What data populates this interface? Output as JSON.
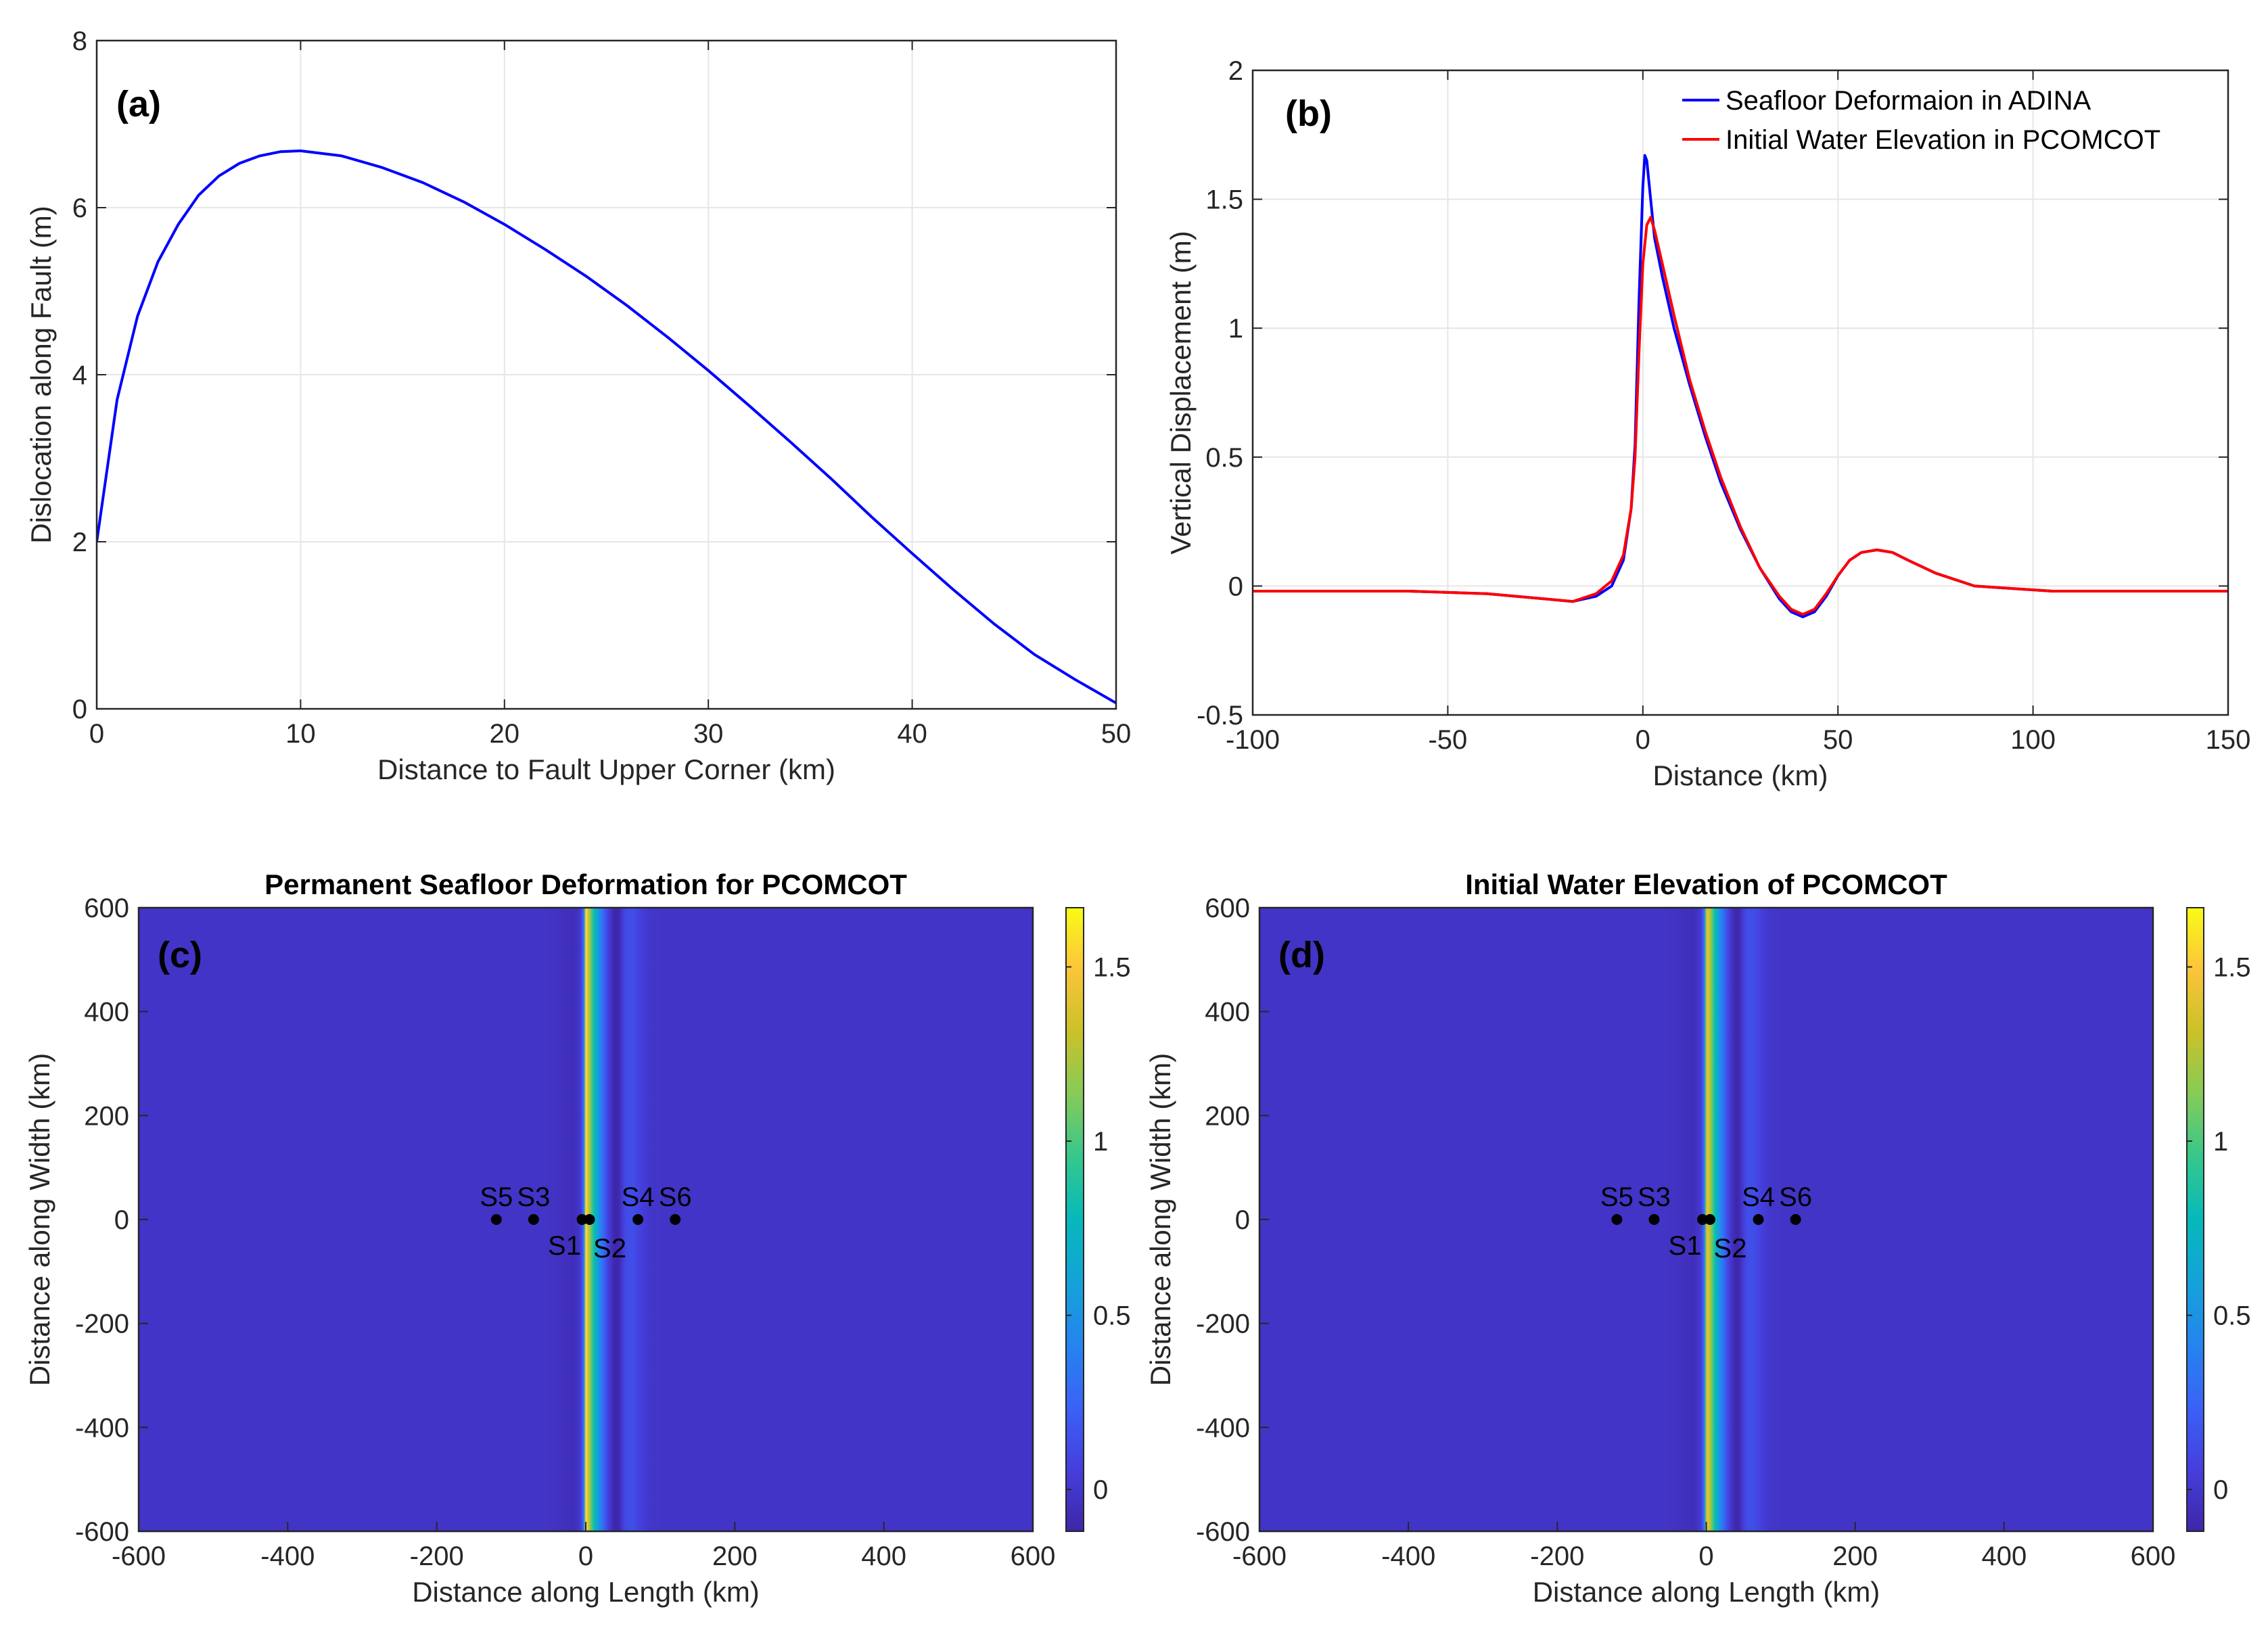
{
  "chart_data": [
    {
      "id": "a",
      "type": "line",
      "panel_label": "(a)",
      "title": "",
      "xlabel": "Distance to Fault Upper Corner (km)",
      "ylabel": "Dislocation along Fault (m)",
      "xlim": [
        0,
        50
      ],
      "ylim": [
        0,
        8
      ],
      "xticks": [
        0,
        10,
        20,
        30,
        40,
        50
      ],
      "yticks": [
        0,
        2,
        4,
        6,
        8
      ],
      "grid": true,
      "series": [
        {
          "name": "Dislocation",
          "color": "#0000FF",
          "x": [
            0,
            1,
            2,
            3,
            4,
            5,
            6,
            7,
            8,
            9,
            10,
            12,
            14,
            16,
            18,
            20,
            22,
            24,
            26,
            28,
            30,
            32,
            34,
            36,
            38,
            40,
            42,
            44,
            46,
            48,
            50
          ],
          "y": [
            2.0,
            3.7,
            4.7,
            5.35,
            5.8,
            6.15,
            6.38,
            6.53,
            6.62,
            6.67,
            6.68,
            6.62,
            6.48,
            6.3,
            6.07,
            5.8,
            5.5,
            5.18,
            4.83,
            4.45,
            4.05,
            3.63,
            3.2,
            2.76,
            2.3,
            1.86,
            1.43,
            1.02,
            0.65,
            0.35,
            0.07
          ]
        }
      ]
    },
    {
      "id": "b",
      "type": "line",
      "panel_label": "(b)",
      "title": "",
      "xlabel": "Distance (km)",
      "ylabel": "Vertical Displacement (m)",
      "xlim": [
        -100,
        150
      ],
      "ylim": [
        -0.5,
        2
      ],
      "xticks": [
        -100,
        -50,
        0,
        50,
        100,
        150
      ],
      "yticks": [
        -0.5,
        0,
        0.5,
        1,
        1.5,
        2
      ],
      "ytick_labels": [
        "-0.5",
        "0",
        "0.5",
        "1",
        "1.5",
        "2"
      ],
      "grid": true,
      "legend_position": "top-right",
      "series": [
        {
          "name": "Seafloor Deformaion in ADINA",
          "color": "#0000FF",
          "x": [
            -100,
            -80,
            -60,
            -40,
            -25,
            -18,
            -12,
            -8,
            -5,
            -3,
            -2,
            -1,
            0,
            0.5,
            1,
            2,
            3,
            5,
            8,
            12,
            16,
            20,
            25,
            30,
            35,
            38,
            41,
            44,
            47,
            50,
            53,
            56,
            60,
            64,
            68,
            75,
            85,
            95,
            105,
            115,
            125,
            135,
            150
          ],
          "y": [
            -0.02,
            -0.02,
            -0.02,
            -0.03,
            -0.05,
            -0.06,
            -0.04,
            0.0,
            0.1,
            0.3,
            0.55,
            1.1,
            1.55,
            1.67,
            1.65,
            1.5,
            1.35,
            1.2,
            1.0,
            0.78,
            0.58,
            0.4,
            0.22,
            0.07,
            -0.05,
            -0.1,
            -0.12,
            -0.1,
            -0.04,
            0.04,
            0.1,
            0.13,
            0.14,
            0.13,
            0.1,
            0.05,
            0.0,
            -0.01,
            -0.02,
            -0.02,
            -0.02,
            -0.02,
            -0.02
          ]
        },
        {
          "name": "Initial Water Elevation in PCOMCOT",
          "color": "#FF0000",
          "x": [
            -100,
            -80,
            -60,
            -40,
            -25,
            -18,
            -12,
            -8,
            -5,
            -3,
            -2,
            -1,
            0,
            1,
            2,
            3,
            5,
            8,
            12,
            16,
            20,
            25,
            30,
            35,
            38,
            41,
            44,
            47,
            50,
            53,
            56,
            60,
            64,
            68,
            75,
            85,
            95,
            105,
            115,
            125,
            135,
            150
          ],
          "y": [
            -0.02,
            -0.02,
            -0.02,
            -0.03,
            -0.05,
            -0.06,
            -0.03,
            0.02,
            0.12,
            0.3,
            0.5,
            0.9,
            1.25,
            1.4,
            1.43,
            1.38,
            1.25,
            1.05,
            0.8,
            0.6,
            0.42,
            0.23,
            0.07,
            -0.04,
            -0.09,
            -0.11,
            -0.09,
            -0.03,
            0.04,
            0.1,
            0.13,
            0.14,
            0.13,
            0.1,
            0.05,
            0.0,
            -0.01,
            -0.02,
            -0.02,
            -0.02,
            -0.02,
            -0.02
          ]
        }
      ]
    },
    {
      "id": "c",
      "type": "heatmap",
      "panel_label": "(c)",
      "title": "Permanent Seafloor Deformation for PCOMCOT",
      "xlabel": "Distance along Length (km)",
      "ylabel": "Distance along Width (km)",
      "xlim": [
        -600,
        600
      ],
      "ylim": [
        -600,
        600
      ],
      "xticks": [
        -600,
        -400,
        -200,
        0,
        200,
        400,
        600
      ],
      "yticks": [
        -600,
        -400,
        -200,
        0,
        200,
        400,
        600
      ],
      "colorbar_ticks": [
        0,
        0.5,
        1,
        1.5
      ],
      "colorbar_range": [
        -0.12,
        1.67
      ],
      "stations": [
        {
          "name": "S5",
          "x": -120,
          "y": 0
        },
        {
          "name": "S3",
          "x": -70,
          "y": 0
        },
        {
          "name": "S1",
          "x": -5,
          "y": 0
        },
        {
          "name": "S2",
          "x": 5,
          "y": 0
        },
        {
          "name": "S4",
          "x": 70,
          "y": 0
        },
        {
          "name": "S6",
          "x": 120,
          "y": 0
        }
      ]
    },
    {
      "id": "d",
      "type": "heatmap",
      "panel_label": "(d)",
      "title": "Initial Water Elevation of PCOMCOT",
      "xlabel": "Distance along Length (km)",
      "ylabel": "Distance along Width (km)",
      "xlim": [
        -600,
        600
      ],
      "ylim": [
        -600,
        600
      ],
      "xticks": [
        -600,
        -400,
        -200,
        0,
        200,
        400,
        600
      ],
      "yticks": [
        -600,
        -400,
        -200,
        0,
        200,
        400,
        600
      ],
      "colorbar_ticks": [
        0,
        0.5,
        1,
        1.5
      ],
      "colorbar_range": [
        -0.12,
        1.67
      ],
      "stations": [
        {
          "name": "S5",
          "x": -120,
          "y": 0
        },
        {
          "name": "S3",
          "x": -70,
          "y": 0
        },
        {
          "name": "S1",
          "x": -5,
          "y": 0
        },
        {
          "name": "S2",
          "x": 5,
          "y": 0
        },
        {
          "name": "S4",
          "x": 70,
          "y": 0
        },
        {
          "name": "S6",
          "x": 120,
          "y": 0
        }
      ]
    }
  ]
}
